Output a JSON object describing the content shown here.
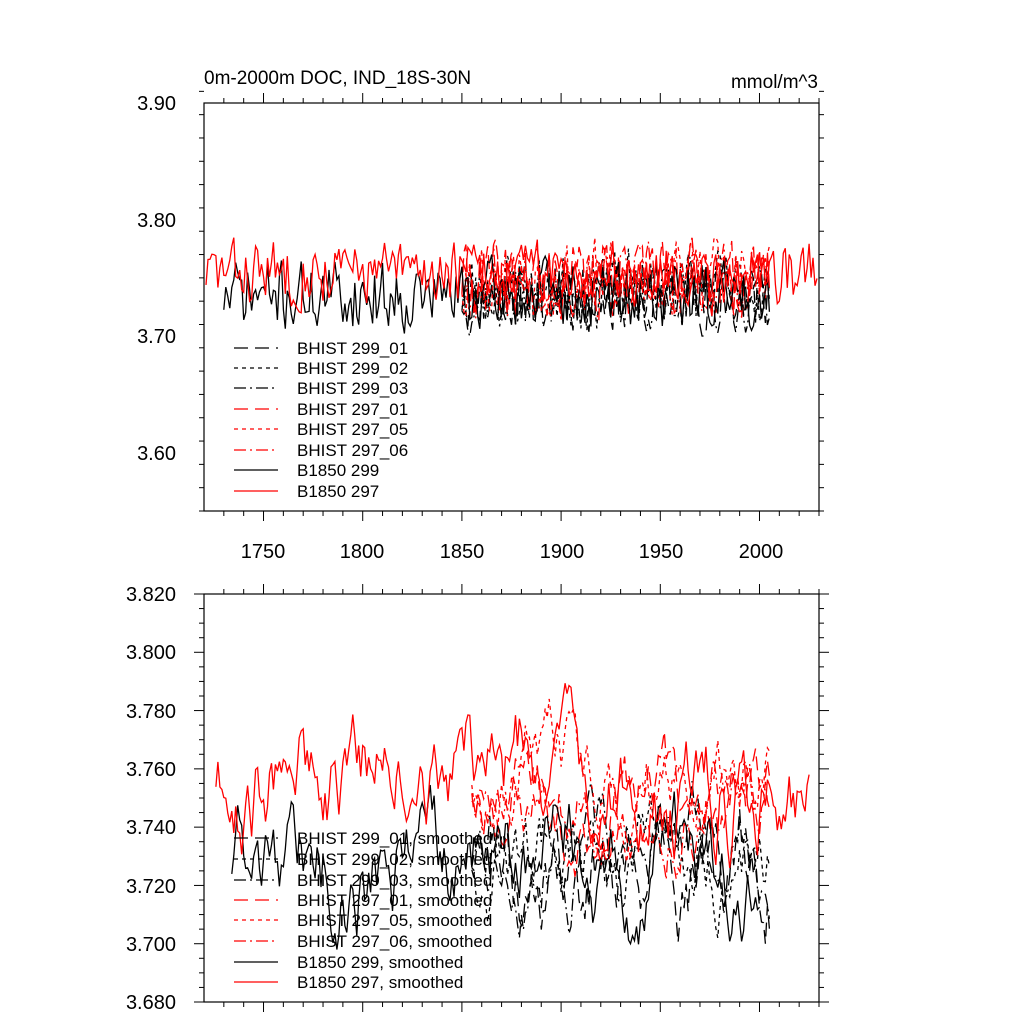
{
  "chart_data": [
    {
      "type": "line",
      "title": "0m-2000m DOC, IND_18S-30N",
      "units": "mmol/m^3",
      "xlim": [
        1720,
        2030
      ],
      "ylim": [
        3.55,
        3.9
      ],
      "xticks": [
        "1750",
        "1800",
        "1850",
        "1900",
        "1950",
        "2000"
      ],
      "yticks": [
        "3.60",
        "3.70",
        "3.80",
        "3.90"
      ],
      "grid": false,
      "legend_position": "lower-left",
      "series": [
        {
          "name": "BHIST 299_01",
          "color": "#000000",
          "dash": "long",
          "x0": 1850,
          "x1": 2005,
          "base": 3.735,
          "amp": 0.035,
          "seed": 11
        },
        {
          "name": "BHIST 299_02",
          "color": "#000000",
          "dash": "short",
          "x0": 1850,
          "x1": 2005,
          "base": 3.74,
          "amp": 0.035,
          "seed": 23
        },
        {
          "name": "BHIST 299_03",
          "color": "#000000",
          "dash": "dashdot",
          "x0": 1850,
          "x1": 2005,
          "base": 3.735,
          "amp": 0.035,
          "seed": 37
        },
        {
          "name": "BHIST 297_01",
          "color": "#ff0000",
          "dash": "long",
          "x0": 1850,
          "x1": 2005,
          "base": 3.75,
          "amp": 0.035,
          "seed": 41
        },
        {
          "name": "BHIST 297_05",
          "color": "#ff0000",
          "dash": "short",
          "x0": 1850,
          "x1": 2005,
          "base": 3.752,
          "amp": 0.035,
          "seed": 53
        },
        {
          "name": "BHIST 297_06",
          "color": "#ff0000",
          "dash": "dashdot",
          "x0": 1850,
          "x1": 2005,
          "base": 3.748,
          "amp": 0.035,
          "seed": 67
        },
        {
          "name": "B1850 299",
          "color": "#000000",
          "dash": "solid",
          "x0": 1730,
          "x1": 2005,
          "base": 3.735,
          "amp": 0.035,
          "seed": 71
        },
        {
          "name": "B1850 297",
          "color": "#ff0000",
          "dash": "solid",
          "x0": 1721,
          "x1": 2029,
          "base": 3.755,
          "amp": 0.035,
          "seed": 83
        }
      ]
    },
    {
      "type": "line",
      "title": "",
      "xlim": [
        1720,
        2030
      ],
      "ylim": [
        3.68,
        3.82
      ],
      "yticks": [
        "3.680",
        "3.700",
        "3.720",
        "3.740",
        "3.760",
        "3.780",
        "3.800",
        "3.820"
      ],
      "grid": false,
      "legend_position": "lower-left",
      "series": [
        {
          "name": "BHIST 299_01, smoothed",
          "color": "#000000",
          "dash": "long",
          "x0": 1855,
          "x1": 2005,
          "base": 3.73,
          "amp": 0.03,
          "seed": 111
        },
        {
          "name": "BHIST 299_02, smoothed",
          "color": "#000000",
          "dash": "short",
          "x0": 1855,
          "x1": 2005,
          "base": 3.73,
          "amp": 0.028,
          "seed": 123
        },
        {
          "name": "BHIST 299_03, smoothed",
          "color": "#000000",
          "dash": "dashdot",
          "x0": 1855,
          "x1": 2005,
          "base": 3.73,
          "amp": 0.028,
          "seed": 137
        },
        {
          "name": "BHIST 297_01, smoothed",
          "color": "#ff0000",
          "dash": "long",
          "x0": 1855,
          "x1": 2005,
          "base": 3.755,
          "amp": 0.032,
          "seed": 141
        },
        {
          "name": "BHIST 297_05, smoothed",
          "color": "#ff0000",
          "dash": "short",
          "x0": 1855,
          "x1": 2005,
          "base": 3.758,
          "amp": 0.03,
          "seed": 153
        },
        {
          "name": "BHIST 297_06, smoothed",
          "color": "#ff0000",
          "dash": "dashdot",
          "x0": 1855,
          "x1": 2005,
          "base": 3.752,
          "amp": 0.03,
          "seed": 167
        },
        {
          "name": "B1850 299, smoothed",
          "color": "#000000",
          "dash": "solid",
          "x0": 1734,
          "x1": 2000,
          "base": 3.728,
          "amp": 0.03,
          "seed": 171
        },
        {
          "name": "B1850 297, smoothed",
          "color": "#ff0000",
          "dash": "solid",
          "x0": 1726,
          "x1": 2025,
          "base": 3.758,
          "amp": 0.032,
          "seed": 183
        }
      ]
    }
  ]
}
